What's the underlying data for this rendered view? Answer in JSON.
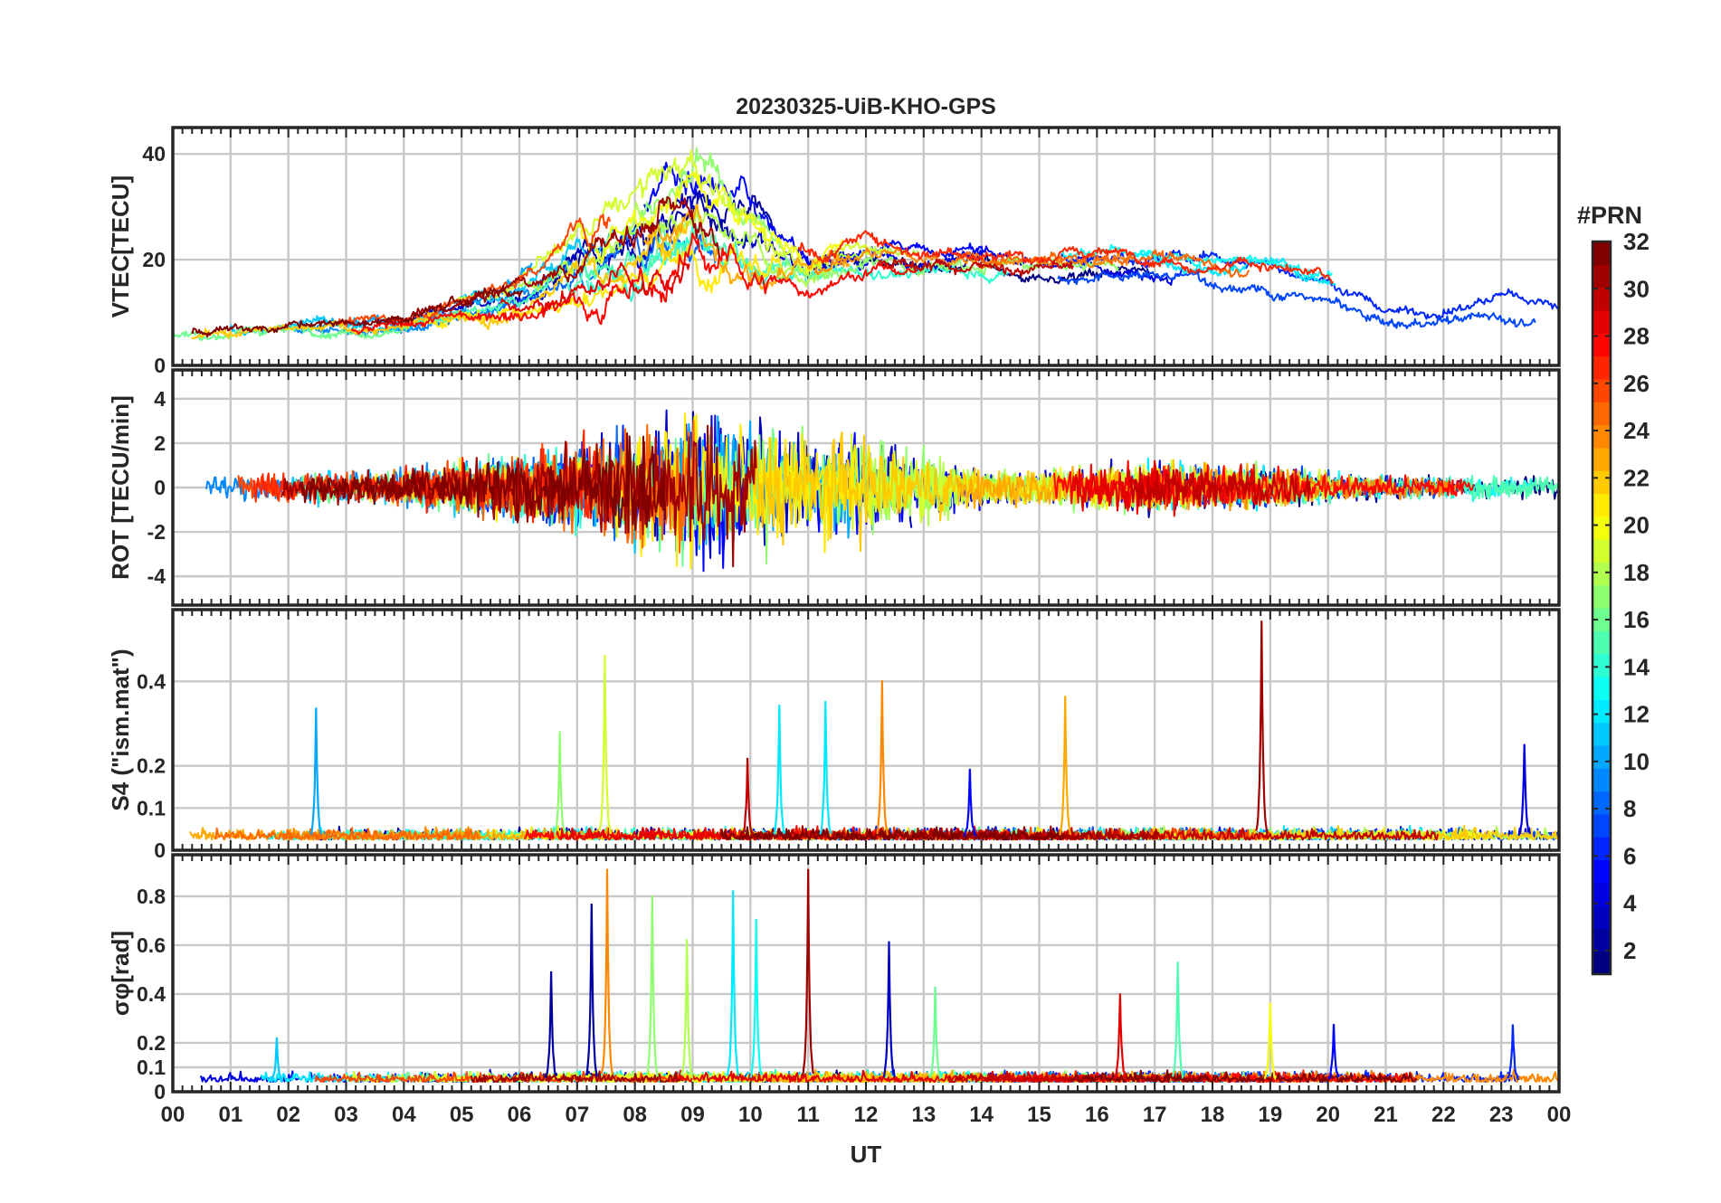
{
  "chart_data": {
    "type": "line",
    "title": "20230325-UiB-KHO-GPS",
    "xlabel": "UT",
    "x_ticks": [
      "00",
      "01",
      "02",
      "03",
      "04",
      "05",
      "06",
      "07",
      "08",
      "09",
      "10",
      "11",
      "12",
      "13",
      "14",
      "15",
      "16",
      "17",
      "18",
      "19",
      "20",
      "21",
      "22",
      "23",
      "00"
    ],
    "xlim": [
      0,
      24
    ],
    "colorbar": {
      "label": "#PRN",
      "ticks": [
        "2",
        "4",
        "6",
        "8",
        "10",
        "12",
        "14",
        "16",
        "18",
        "20",
        "22",
        "24",
        "26",
        "28",
        "30",
        "32"
      ],
      "range": [
        1,
        32
      ],
      "colormap": "jet"
    },
    "panels": [
      {
        "id": "vtec",
        "ylabel": "VTEC[TECU]",
        "ylim": [
          0,
          45
        ],
        "yticks": [
          "0",
          "20",
          "40"
        ],
        "ytick_values": [
          0,
          20,
          40
        ],
        "kind": "vtec",
        "envelope_x": [
          0,
          2,
          4,
          5,
          6,
          7,
          8,
          9,
          10,
          11,
          12,
          13,
          14,
          15,
          16,
          17,
          18,
          19,
          20,
          21,
          22,
          23,
          24
        ],
        "envelope_y": [
          6,
          7,
          8,
          11,
          14,
          20,
          26,
          30,
          24,
          18,
          21,
          20,
          20,
          19,
          19,
          19,
          18,
          17,
          14,
          9,
          9,
          11,
          10
        ],
        "envelope_spread": [
          2,
          2,
          2,
          3,
          4,
          8,
          10,
          12,
          10,
          5,
          4,
          3,
          3,
          3,
          3,
          3,
          3,
          3,
          3,
          2,
          2,
          3,
          2
        ]
      },
      {
        "id": "rot",
        "ylabel": "ROT [TECU/min]",
        "ylim": [
          -5.3,
          5.3
        ],
        "yticks": [
          "-4",
          "-2",
          "0",
          "2",
          "4"
        ],
        "ytick_values": [
          -4,
          -2,
          0,
          2,
          4
        ],
        "kind": "rot",
        "envelope_x": [
          0,
          2,
          4,
          5,
          6,
          7,
          8,
          9,
          10,
          11,
          12,
          13,
          14,
          15,
          16,
          17,
          18,
          19,
          20,
          21,
          22,
          23,
          24
        ],
        "envelope_amp": [
          0.4,
          0.5,
          0.6,
          0.9,
          1.2,
          1.6,
          2.0,
          2.6,
          2.3,
          1.8,
          1.8,
          1.2,
          0.7,
          0.6,
          0.8,
          0.9,
          0.7,
          0.8,
          0.5,
          0.4,
          0.4,
          0.4,
          0.4
        ]
      },
      {
        "id": "s4",
        "ylabel": "S4 (\"ism.mat\")",
        "ylim": [
          0,
          0.57
        ],
        "yticks": [
          "0",
          "0.1",
          "0.2",
          "0.4"
        ],
        "ytick_values": [
          0,
          0.1,
          0.2,
          0.4
        ],
        "kind": "index",
        "baseline": 0.025,
        "noise": 0.02,
        "spikes": [
          {
            "t": 2.48,
            "v": 0.33,
            "prn": 10
          },
          {
            "t": 6.7,
            "v": 0.27,
            "prn": 17
          },
          {
            "t": 7.48,
            "v": 0.46,
            "prn": 19
          },
          {
            "t": 9.95,
            "v": 0.21,
            "prn": 30
          },
          {
            "t": 10.5,
            "v": 0.34,
            "prn": 12
          },
          {
            "t": 11.3,
            "v": 0.35,
            "prn": 12
          },
          {
            "t": 12.28,
            "v": 0.4,
            "prn": 24
          },
          {
            "t": 13.8,
            "v": 0.19,
            "prn": 5
          },
          {
            "t": 15.45,
            "v": 0.36,
            "prn": 23
          },
          {
            "t": 18.85,
            "v": 0.54,
            "prn": 31
          },
          {
            "t": 23.4,
            "v": 0.25,
            "prn": 4
          }
        ]
      },
      {
        "id": "sigma",
        "ylabel": "σφ[rad]",
        "ylim": [
          0,
          0.97
        ],
        "yticks": [
          "0",
          "0.1",
          "0.2",
          "0.4",
          "0.6",
          "0.8"
        ],
        "ytick_values": [
          0,
          0.1,
          0.2,
          0.4,
          0.6,
          0.8
        ],
        "kind": "index",
        "baseline": 0.04,
        "noise": 0.03,
        "spikes": [
          {
            "t": 1.8,
            "v": 0.21,
            "prn": 11
          },
          {
            "t": 6.55,
            "v": 0.48,
            "prn": 2
          },
          {
            "t": 7.25,
            "v": 0.77,
            "prn": 2
          },
          {
            "t": 7.52,
            "v": 0.91,
            "prn": 24
          },
          {
            "t": 8.3,
            "v": 0.8,
            "prn": 17
          },
          {
            "t": 8.9,
            "v": 0.62,
            "prn": 18
          },
          {
            "t": 9.7,
            "v": 0.81,
            "prn": 12
          },
          {
            "t": 10.1,
            "v": 0.7,
            "prn": 13
          },
          {
            "t": 11.0,
            "v": 0.9,
            "prn": 31
          },
          {
            "t": 12.4,
            "v": 0.61,
            "prn": 3
          },
          {
            "t": 13.2,
            "v": 0.43,
            "prn": 16
          },
          {
            "t": 16.4,
            "v": 0.4,
            "prn": 29
          },
          {
            "t": 17.4,
            "v": 0.52,
            "prn": 15
          },
          {
            "t": 19.0,
            "v": 0.36,
            "prn": 20
          },
          {
            "t": 20.1,
            "v": 0.27,
            "prn": 5
          },
          {
            "t": 23.2,
            "v": 0.27,
            "prn": 6
          }
        ]
      }
    ]
  }
}
